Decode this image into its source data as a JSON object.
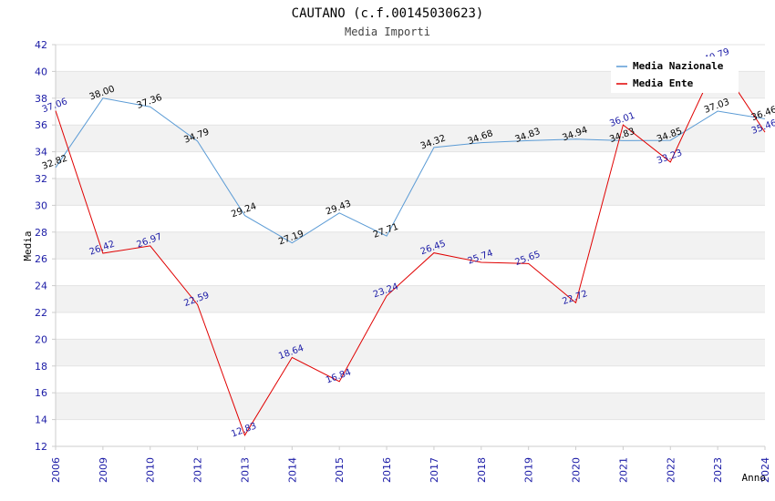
{
  "chart_data": {
    "type": "line",
    "title": "CAUTANO (c.f.00145030623)",
    "subtitle": "Media Importi",
    "xlabel": "Anno",
    "ylabel": "Media",
    "ylim": [
      12,
      42
    ],
    "yticks": [
      12,
      14,
      16,
      18,
      20,
      22,
      24,
      26,
      28,
      30,
      32,
      34,
      36,
      38,
      40,
      42
    ],
    "categories": [
      "2006",
      "2009",
      "2010",
      "2012",
      "2013",
      "2014",
      "2015",
      "2016",
      "2017",
      "2018",
      "2019",
      "2020",
      "2021",
      "2022",
      "2023",
      "2024"
    ],
    "series": [
      {
        "name": "Media Nazionale",
        "color": "#5b9bd5",
        "values": [
          32.82,
          38.0,
          37.36,
          34.79,
          29.24,
          27.19,
          29.43,
          27.71,
          34.32,
          34.68,
          34.83,
          34.94,
          34.83,
          34.85,
          37.03,
          36.46
        ],
        "labels": [
          "32.82",
          "38.00",
          "37.36",
          "34.79",
          "29.24",
          "27.19",
          "29.43",
          "27.71",
          "34.32",
          "34.68",
          "34.83",
          "34.94",
          "34.83",
          "34.85",
          "37.03",
          "36.46"
        ]
      },
      {
        "name": "Media Ente",
        "color": "#e00000",
        "values": [
          37.06,
          26.42,
          26.97,
          22.59,
          12.83,
          18.64,
          16.84,
          23.24,
          26.45,
          25.74,
          25.65,
          22.72,
          36.01,
          33.23,
          40.79,
          35.46
        ],
        "labels": [
          "37.06",
          "26.42",
          "26.97",
          "22.59",
          "12.83",
          "18.64",
          "16.84",
          "23.24",
          "26.45",
          "25.74",
          "25.65",
          "22.72",
          "36.01",
          "33.23",
          "40.79",
          "35.46"
        ]
      }
    ],
    "grid": true,
    "legend": "top-right"
  }
}
